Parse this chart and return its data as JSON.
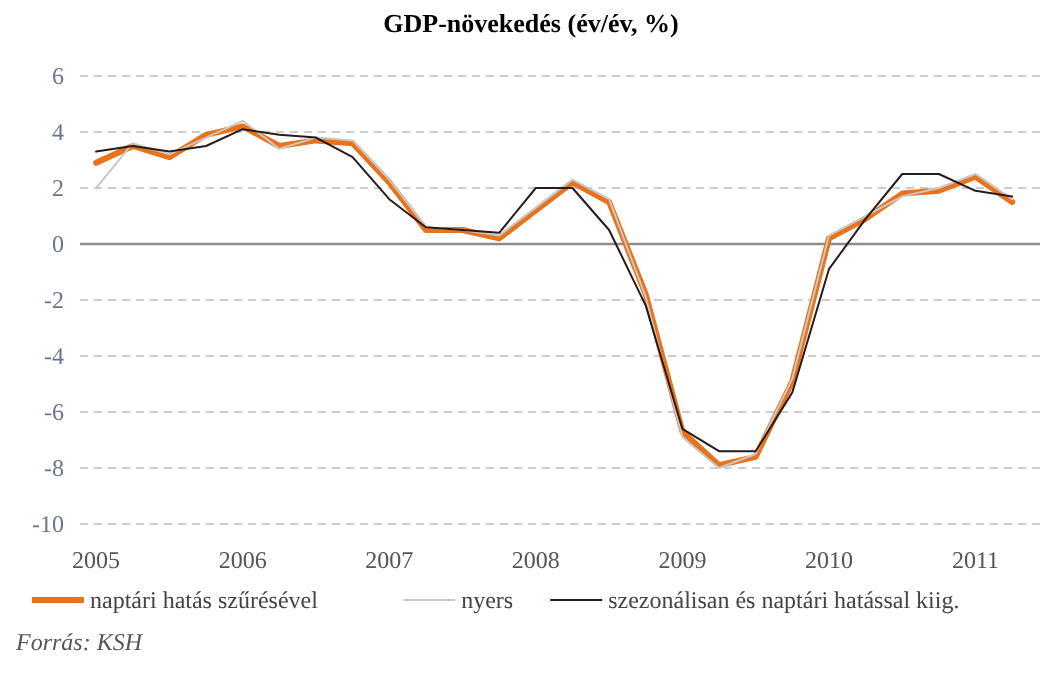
{
  "chart_data": {
    "type": "line",
    "title": "GDP-növekedés (év/év, %)",
    "x": [
      2005,
      2005.25,
      2005.5,
      2005.75,
      2006,
      2006.25,
      2006.5,
      2006.75,
      2007,
      2007.25,
      2007.5,
      2007.75,
      2008,
      2008.25,
      2008.5,
      2008.75,
      2009,
      2009.25,
      2009.5,
      2009.75,
      2010,
      2010.25,
      2010.5,
      2010.75,
      2011,
      2011.25
    ],
    "series": [
      {
        "name": "naptári hatás szűrésével",
        "color": "#e8731a",
        "values": [
          2.9,
          3.5,
          3.1,
          3.9,
          4.2,
          3.5,
          3.7,
          3.6,
          2.2,
          0.5,
          0.5,
          0.2,
          1.2,
          2.2,
          1.5,
          -1.8,
          -6.7,
          -7.9,
          -7.6,
          -4.9,
          0.2,
          0.9,
          1.8,
          1.9,
          2.4,
          1.5
        ]
      },
      {
        "name": "nyers",
        "color": "#c8c8c8",
        "values": [
          2.0,
          3.6,
          3.2,
          3.8,
          4.4,
          3.4,
          3.8,
          3.7,
          2.3,
          0.6,
          0.5,
          0.3,
          1.3,
          2.3,
          1.6,
          -1.9,
          -6.9,
          -8.0,
          -7.5,
          -4.8,
          0.3,
          1.0,
          1.7,
          2.0,
          2.5,
          1.6
        ]
      },
      {
        "name": "szezonálisan és naptári hatással kiig.",
        "color": "#2a1a1a",
        "values": [
          3.3,
          3.5,
          3.3,
          3.5,
          4.1,
          3.9,
          3.8,
          3.1,
          1.6,
          0.6,
          0.5,
          0.4,
          2.0,
          2.0,
          0.5,
          -2.2,
          -6.6,
          -7.4,
          -7.4,
          -5.3,
          -0.9,
          0.9,
          2.5,
          2.5,
          1.9,
          1.7
        ]
      }
    ],
    "xlim": [
      2004.89,
      2011.44
    ],
    "xticks": [
      2005,
      2006,
      2007,
      2008,
      2009,
      2010,
      2011
    ],
    "ylim": [
      -10,
      6
    ],
    "yticks": [
      -10,
      -8,
      -6,
      -4,
      -2,
      0,
      2,
      4,
      6
    ],
    "grid": "y",
    "legend": "bottom",
    "marker": "none",
    "line_style": "solid",
    "ref_lines": [
      {
        "axis": "y",
        "value": 0,
        "color": "#8c8c8c"
      }
    ],
    "annotations": [
      "Forrás: KSH"
    ]
  }
}
